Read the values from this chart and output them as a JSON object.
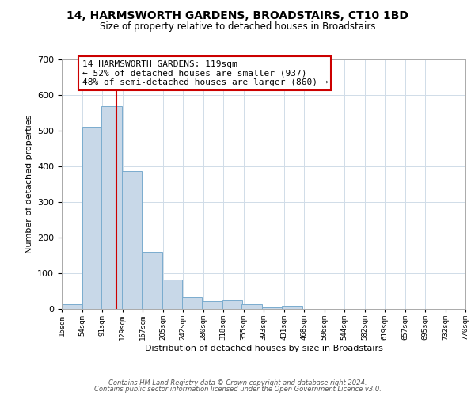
{
  "title": "14, HARMSWORTH GARDENS, BROADSTAIRS, CT10 1BD",
  "subtitle": "Size of property relative to detached houses in Broadstairs",
  "xlabel": "Distribution of detached houses by size in Broadstairs",
  "ylabel": "Number of detached properties",
  "bar_left_edges": [
    16,
    54,
    91,
    129,
    167,
    205,
    242,
    280,
    318,
    355,
    393,
    431,
    468,
    506,
    544,
    582,
    619,
    657,
    695,
    732
  ],
  "bar_heights": [
    14,
    511,
    570,
    387,
    160,
    83,
    33,
    22,
    24,
    14,
    5,
    10,
    0,
    0,
    0,
    0,
    0,
    0,
    0,
    0
  ],
  "bin_width": 38,
  "bar_color": "#c8d8e8",
  "bar_edgecolor": "#7aacce",
  "ylim": [
    0,
    700
  ],
  "yticks": [
    0,
    100,
    200,
    300,
    400,
    500,
    600,
    700
  ],
  "xtick_labels": [
    "16sqm",
    "54sqm",
    "91sqm",
    "129sqm",
    "167sqm",
    "205sqm",
    "242sqm",
    "280sqm",
    "318sqm",
    "355sqm",
    "393sqm",
    "431sqm",
    "468sqm",
    "506sqm",
    "544sqm",
    "582sqm",
    "619sqm",
    "657sqm",
    "695sqm",
    "732sqm",
    "770sqm"
  ],
  "property_line_x": 119,
  "property_line_color": "#cc0000",
  "annotation_title": "14 HARMSWORTH GARDENS: 119sqm",
  "annotation_line1": "← 52% of detached houses are smaller (937)",
  "annotation_line2": "48% of semi-detached houses are larger (860) →",
  "annotation_box_edgecolor": "#cc0000",
  "footnote1": "Contains HM Land Registry data © Crown copyright and database right 2024.",
  "footnote2": "Contains public sector information licensed under the Open Government Licence v3.0.",
  "background_color": "#ffffff",
  "grid_color": "#d0dce8"
}
